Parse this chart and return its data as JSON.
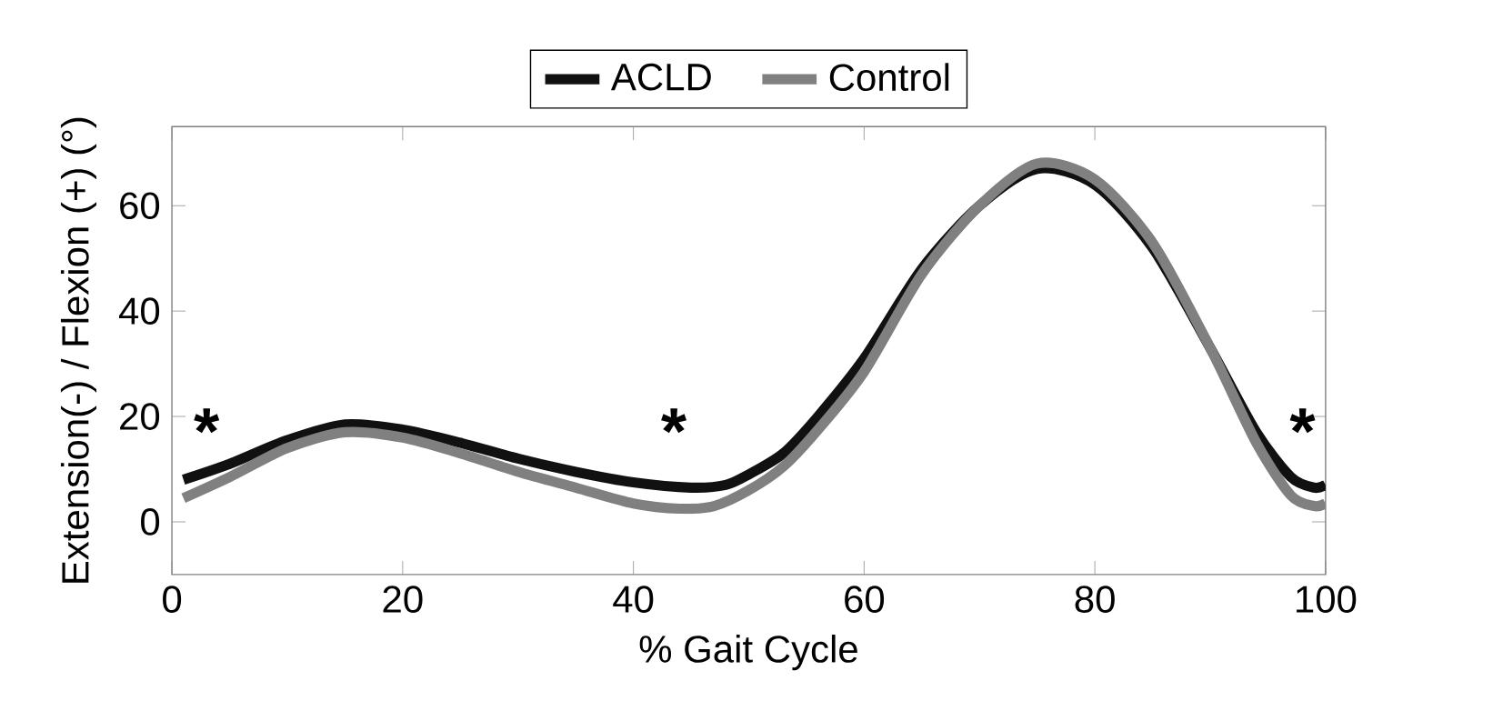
{
  "chart_data": {
    "type": "line",
    "xlabel": "% Gait Cycle",
    "ylabel": "Extension(-) / Flexion (+) (°)",
    "xlim": [
      0,
      100
    ],
    "ylim": [
      -10,
      75
    ],
    "xticks": [
      0,
      20,
      40,
      60,
      80,
      100
    ],
    "yticks": [
      0,
      20,
      40,
      60
    ],
    "legend": "top",
    "line_style": "solid",
    "marker": "none",
    "series": [
      {
        "name": "ACLD",
        "color": "#111111",
        "x": [
          1,
          5,
          10,
          15,
          20,
          25,
          30,
          35,
          40,
          45,
          48,
          50,
          53,
          56,
          60,
          65,
          70,
          75,
          80,
          85,
          90,
          94,
          97,
          99,
          100
        ],
        "values": [
          8,
          11,
          15.5,
          18.5,
          17.5,
          15,
          12,
          9.5,
          7.5,
          6.5,
          7,
          9,
          13,
          20,
          31,
          48,
          60,
          67,
          64,
          52,
          33,
          17,
          8.5,
          6.5,
          7
        ]
      },
      {
        "name": "Control",
        "color": "#808080",
        "x": [
          1,
          5,
          10,
          15,
          20,
          25,
          30,
          35,
          40,
          44,
          47,
          50,
          53,
          56,
          60,
          65,
          70,
          75,
          80,
          85,
          90,
          94,
          97,
          99,
          100
        ],
        "values": [
          4.5,
          8.5,
          14,
          17,
          16,
          13,
          9.5,
          6.5,
          3.5,
          2.5,
          3,
          6,
          10.5,
          17.5,
          28.5,
          47,
          60,
          68,
          65,
          53,
          33,
          15,
          5,
          3,
          3.5
        ]
      }
    ],
    "annotations": [
      "*",
      "*",
      "*"
    ]
  }
}
